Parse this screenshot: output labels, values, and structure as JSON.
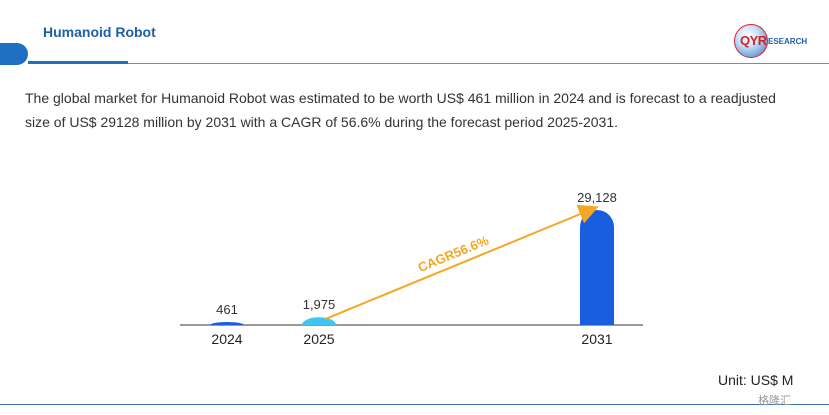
{
  "header": {
    "title": "Humanoid Robot"
  },
  "logo": {
    "qyr": "QYR",
    "research": "ESEARCH"
  },
  "description": "The global market for Humanoid Robot was estimated to be worth US$ 461 million in 2024 and is forecast to a readjusted size of US$ 29128 million by 2031 with a CAGR of 56.6% during the forecast period 2025-2031.",
  "unit_label": "Unit: US$ M",
  "watermark": "格隆汇",
  "colors": {
    "accent": "#1f6fc2",
    "bar_2031": "#1a5ee0",
    "bar_2025": "#3ec6f0",
    "arrow": "#f5a623"
  },
  "chart_data": {
    "type": "bar",
    "categories": [
      "2024",
      "2025",
      "2031"
    ],
    "values": [
      461,
      1975,
      29128
    ],
    "value_labels": [
      "461",
      "1,975",
      "29,128"
    ],
    "annotation": "CAGR56.6%",
    "title": "",
    "xlabel": "",
    "ylabel": ""
  }
}
